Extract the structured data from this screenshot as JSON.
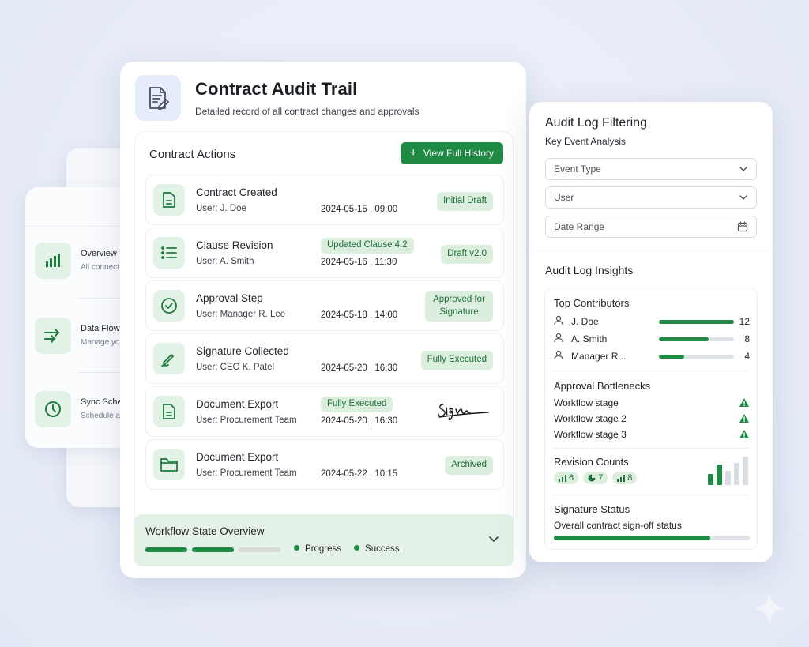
{
  "side_items": [
    {
      "title": "Overview",
      "subtitle": "All connect",
      "icon": "bar-chart-icon"
    },
    {
      "title": "Data Flow",
      "subtitle": "Manage yo",
      "icon": "transfer-arrows-icon"
    },
    {
      "title": "Sync Sche",
      "subtitle": "Schedule a",
      "icon": "clock-icon"
    }
  ],
  "header": {
    "title": "Contract Audit Trail",
    "subtitle": "Detailed record of all contract changes and approvals",
    "icon": "document-edit-icon"
  },
  "actions": {
    "title": "Contract Actions",
    "history_button": "View Full History",
    "rows": [
      {
        "title": "Contract Created",
        "user": "User: J. Doe",
        "date": "2024-05-15 , 09:00",
        "badge": "Initial Draft",
        "icon": "document-icon"
      },
      {
        "title": "Clause Revision",
        "user": "User: A. Smith",
        "date": "2024-05-16 , 11:30",
        "badge": "Draft v2.0",
        "inline_badge": "Updated Clause 4.2",
        "icon": "list-icon"
      },
      {
        "title": "Approval Step",
        "user": "User: Manager R. Lee",
        "date": "2024-05-18 , 14:00",
        "badge": "Approved for Signature",
        "icon": "check-circle-icon"
      },
      {
        "title": "Signature Collected",
        "user": "User: CEO K. Patel",
        "date": "2024-05-20 , 16:30",
        "badge": "Fully Executed",
        "icon": "pen-icon"
      },
      {
        "title": "Document Export",
        "user": "User: Procurement Team",
        "date": "2024-05-20 , 16:30",
        "inline_badge": "Fully Executed",
        "icon": "document-icon",
        "signature": "Signa"
      },
      {
        "title": "Document Export",
        "user": "User: Procurement Team",
        "date": "2024-05-22 , 10:15",
        "badge": "Archived",
        "icon": "folder-icon"
      }
    ]
  },
  "workflow": {
    "title": "Workflow State Overview",
    "progress_filled_segments": 2,
    "progress_total_segments": 3,
    "legend": [
      "Progress",
      "Success"
    ]
  },
  "filters": {
    "title": "Audit Log Filtering",
    "subtitle": "Key Event Analysis",
    "event_type": "Event Type",
    "user": "User",
    "date_range": "Date Range"
  },
  "insights": {
    "title": "Audit Log Insights",
    "top_contributors": {
      "title": "Top Contributors",
      "items": [
        {
          "name": "J. Doe",
          "count": "12",
          "value": 12
        },
        {
          "name": "A. Smith",
          "count": "8",
          "value": 8
        },
        {
          "name": "Manager R...",
          "count": "4",
          "value": 4
        }
      ],
      "max": 12
    },
    "bottlenecks": {
      "title": "Approval Bottlenecks",
      "items": [
        "Workflow stage",
        "Workflow stage 2",
        "Workflow stage 3"
      ]
    },
    "revisions": {
      "title": "Revision Counts",
      "pills": [
        "6",
        "7",
        "8"
      ]
    },
    "signature": {
      "title": "Signature Status",
      "subtitle": "Overall contract sign-off status",
      "progress": 0.8
    }
  },
  "colors": {
    "accent": "#1e8a43",
    "accent_light": "#dcefdf",
    "warning": "#1e8a43"
  }
}
